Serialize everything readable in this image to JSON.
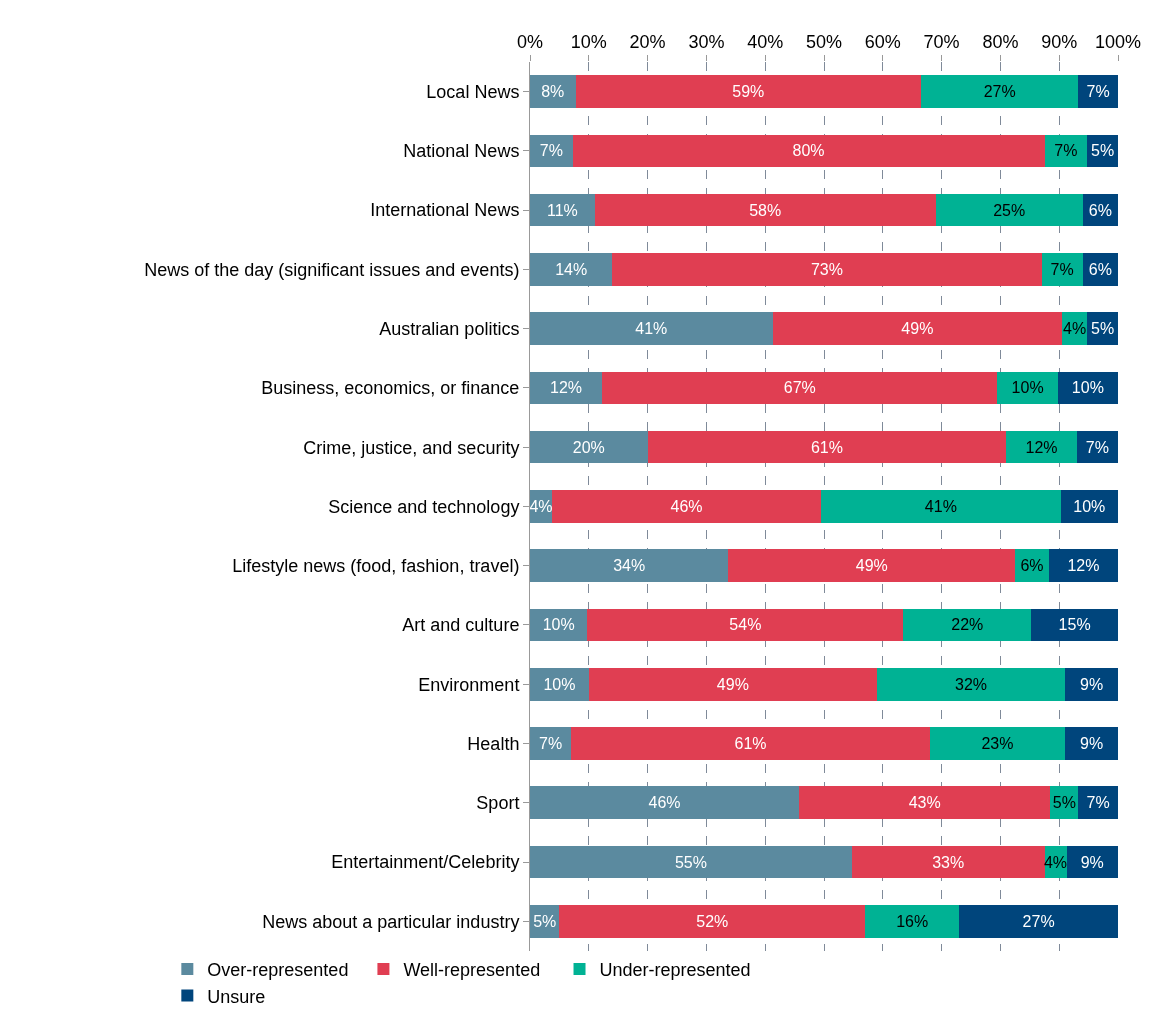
{
  "chart_data": {
    "type": "bar",
    "orientation": "horizontal",
    "stacked": true,
    "grid": "x",
    "legend": "bottom",
    "categories": [
      "Local News",
      "National News",
      "International News",
      "News of the day (significant issues and events)",
      "Australian politics",
      "Business, economics, or finance",
      "Crime, justice, and security",
      "Science and technology",
      "Lifestyle news (food, fashion, travel)",
      "Art and culture",
      "Environment",
      "Health",
      "Sport",
      "Entertainment/Celebrity",
      "News about a particular industry"
    ],
    "xlim": [
      0,
      100
    ],
    "xticks": [
      {
        "value": 0,
        "label": "0%"
      },
      {
        "value": 10,
        "label": "10%"
      },
      {
        "value": 20,
        "label": "20%"
      },
      {
        "value": 30,
        "label": "30%"
      },
      {
        "value": 40,
        "label": "40%"
      },
      {
        "value": 50,
        "label": "50%"
      },
      {
        "value": 60,
        "label": "60%"
      },
      {
        "value": 70,
        "label": "70%"
      },
      {
        "value": 80,
        "label": "80%"
      },
      {
        "value": 90,
        "label": "90%"
      },
      {
        "value": 100,
        "label": "100%"
      }
    ],
    "series": [
      {
        "name": "Over-represented",
        "color": "#5b8a9f",
        "values": [
          7.75,
          7.25,
          11,
          14,
          41.25,
          12.25,
          20,
          3.75,
          33.75,
          9.75,
          10,
          7,
          45.75,
          54.75,
          5
        ],
        "value_labels": [
          "8%",
          "7%",
          "11%",
          "14%",
          "41%",
          "12%",
          "20%",
          "4%",
          "34%",
          "10%",
          "10%",
          "7%",
          "46%",
          "55%",
          "5%"
        ]
      },
      {
        "name": "Well-represented",
        "color": "#e03e52",
        "values": [
          58.75,
          80.25,
          58,
          73,
          49.25,
          67.25,
          61,
          45.75,
          48.75,
          53.75,
          49,
          61,
          42.75,
          32.75,
          52
        ],
        "value_labels": [
          "59%",
          "80%",
          "58%",
          "73%",
          "49%",
          "67%",
          "61%",
          "46%",
          "49%",
          "54%",
          "49%",
          "61%",
          "43%",
          "33%",
          "52%"
        ]
      },
      {
        "name": "Under-represented",
        "color": "#00b294",
        "values": [
          26.75,
          7.25,
          25,
          7,
          4.25,
          10.25,
          12,
          40.75,
          5.75,
          21.75,
          32,
          23,
          4.75,
          3.75,
          16
        ],
        "value_labels": [
          "27%",
          "7%",
          "25%",
          "7%",
          "4%",
          "10%",
          "12%",
          "41%",
          "6%",
          "22%",
          "32%",
          "23%",
          "5%",
          "4%",
          "16%"
        ]
      },
      {
        "name": "Unsure",
        "color": "#00457c",
        "values": [
          6.75,
          5.25,
          6,
          6,
          5.25,
          10.25,
          7,
          9.75,
          11.75,
          14.75,
          9,
          9,
          6.75,
          8.75,
          27
        ],
        "value_labels": [
          "7%",
          "5%",
          "6%",
          "6%",
          "5%",
          "10%",
          "7%",
          "10%",
          "12%",
          "15%",
          "9%",
          "9%",
          "7%",
          "9%",
          "27%"
        ]
      }
    ]
  }
}
